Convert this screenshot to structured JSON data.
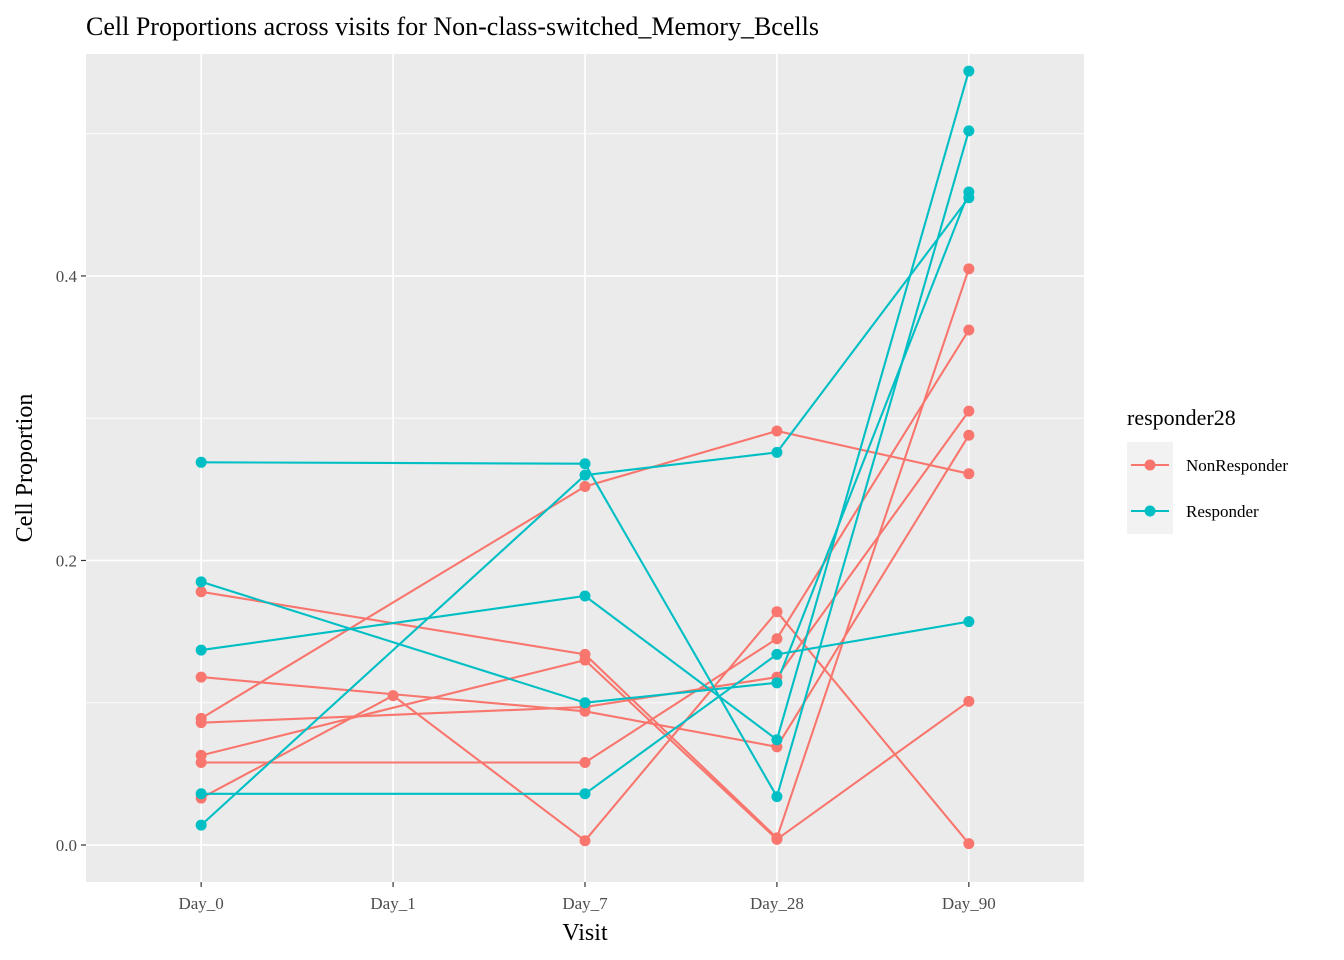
{
  "chart_data": {
    "type": "line",
    "title": "Cell Proportions across visits for Non-class-switched_Memory_Bcells",
    "xlabel": "Visit",
    "ylabel": "Cell Proportion",
    "categories": [
      "Day_0",
      "Day_1",
      "Day_7",
      "Day_28",
      "Day_90"
    ],
    "y_ticks": [
      "0.0",
      "0.2",
      "0.4"
    ],
    "ylim": [
      -0.026,
      0.556
    ],
    "grid": true,
    "legend": {
      "title": "responder28",
      "position": "right",
      "entries": [
        {
          "label": "NonResponder",
          "color": "#F8766D"
        },
        {
          "label": "Responder",
          "color": "#00BFC4"
        }
      ]
    },
    "series": [
      {
        "group": "NonResponder",
        "points": [
          [
            "Day_0",
            0.178
          ],
          [
            "Day_7",
            0.134
          ],
          [
            "Day_28",
            0.005
          ],
          [
            "Day_90",
            0.405
          ]
        ]
      },
      {
        "group": "NonResponder",
        "points": [
          [
            "Day_0",
            0.089
          ],
          [
            "Day_7",
            0.252
          ],
          [
            "Day_28",
            0.291
          ],
          [
            "Day_90",
            0.261
          ]
        ]
      },
      {
        "group": "NonResponder",
        "points": [
          [
            "Day_0",
            0.118
          ],
          [
            "Day_7",
            0.094
          ],
          [
            "Day_28",
            0.069
          ],
          [
            "Day_90",
            0.288
          ]
        ]
      },
      {
        "group": "NonResponder",
        "points": [
          [
            "Day_0",
            0.086
          ],
          [
            "Day_7",
            0.097
          ],
          [
            "Day_28",
            0.118
          ],
          [
            "Day_90",
            0.305
          ]
        ]
      },
      {
        "group": "NonResponder",
        "points": [
          [
            "Day_0",
            0.058
          ],
          [
            "Day_7",
            0.058
          ],
          [
            "Day_28",
            0.145
          ],
          [
            "Day_90",
            0.362
          ]
        ]
      },
      {
        "group": "NonResponder",
        "points": [
          [
            "Day_0",
            0.063
          ],
          [
            "Day_7",
            0.13
          ],
          [
            "Day_28",
            0.004
          ],
          [
            "Day_90",
            0.101
          ]
        ]
      },
      {
        "group": "NonResponder",
        "points": [
          [
            "Day_0",
            0.033
          ],
          [
            "Day_1",
            0.105
          ],
          [
            "Day_7",
            0.003
          ],
          [
            "Day_28",
            0.164
          ],
          [
            "Day_90",
            0.001
          ]
        ]
      },
      {
        "group": "Responder",
        "points": [
          [
            "Day_0",
            0.269
          ],
          [
            "Day_7",
            0.268
          ],
          [
            "Day_28",
            0.034
          ],
          [
            "Day_90",
            0.502
          ]
        ]
      },
      {
        "group": "Responder",
        "points": [
          [
            "Day_0",
            0.185
          ],
          [
            "Day_7",
            0.1
          ],
          [
            "Day_28",
            0.114
          ],
          [
            "Day_90",
            0.459
          ]
        ]
      },
      {
        "group": "Responder",
        "points": [
          [
            "Day_0",
            0.137
          ],
          [
            "Day_7",
            0.175
          ],
          [
            "Day_28",
            0.074
          ],
          [
            "Day_90",
            0.544
          ]
        ]
      },
      {
        "group": "Responder",
        "points": [
          [
            "Day_0",
            0.014
          ],
          [
            "Day_7",
            0.26
          ],
          [
            "Day_28",
            0.276
          ],
          [
            "Day_90",
            0.455
          ]
        ]
      },
      {
        "group": "Responder",
        "points": [
          [
            "Day_0",
            0.036
          ],
          [
            "Day_7",
            0.036
          ],
          [
            "Day_28",
            0.134
          ],
          [
            "Day_90",
            0.157
          ]
        ]
      }
    ]
  }
}
